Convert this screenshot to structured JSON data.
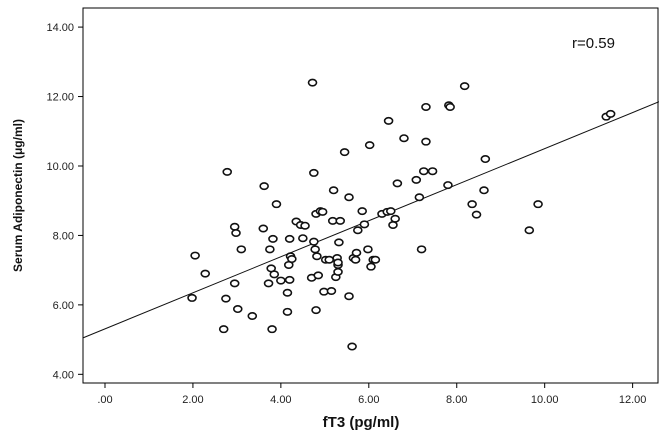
{
  "chart_data": {
    "type": "scatter",
    "xlabel": "fT3 (pg/ml)",
    "ylabel": "Serum Adiponectin (μg/ml)",
    "annotation": "r=0.59",
    "xlim": [
      -0.5,
      12.6
    ],
    "ylim": [
      3.75,
      14.55
    ],
    "x_ticks": [
      0,
      2,
      4,
      6,
      8,
      10,
      12
    ],
    "x_tick_labels": [
      ".00",
      "2.00",
      "4.00",
      "6.00",
      "8.00",
      "10.00",
      "12.00"
    ],
    "y_ticks": [
      4,
      6,
      8,
      10,
      12,
      14
    ],
    "y_tick_labels": [
      "4.00",
      "6.00",
      "8.00",
      "10.00",
      "12.00",
      "14.00"
    ],
    "grid": false,
    "legend": "none",
    "fit_line": {
      "x": [
        -0.5,
        12.6
      ],
      "y": [
        5.05,
        11.85
      ]
    },
    "marker_color": "#111111",
    "line_color": "#111111",
    "points": [
      [
        1.98,
        6.2
      ],
      [
        2.05,
        7.42
      ],
      [
        2.28,
        6.9
      ],
      [
        2.7,
        5.3
      ],
      [
        2.75,
        6.18
      ],
      [
        2.78,
        9.83
      ],
      [
        2.95,
        6.62
      ],
      [
        2.95,
        8.25
      ],
      [
        2.98,
        8.07
      ],
      [
        3.02,
        5.88
      ],
      [
        3.1,
        7.6
      ],
      [
        3.35,
        5.68
      ],
      [
        3.6,
        8.2
      ],
      [
        3.62,
        9.42
      ],
      [
        3.72,
        6.62
      ],
      [
        3.75,
        7.6
      ],
      [
        3.78,
        7.05
      ],
      [
        3.8,
        5.3
      ],
      [
        3.82,
        7.9
      ],
      [
        3.85,
        6.88
      ],
      [
        3.9,
        8.9
      ],
      [
        4.0,
        6.7
      ],
      [
        4.15,
        5.8
      ],
      [
        4.15,
        6.35
      ],
      [
        4.18,
        7.15
      ],
      [
        4.2,
        6.72
      ],
      [
        4.2,
        7.9
      ],
      [
        4.22,
        7.4
      ],
      [
        4.25,
        7.32
      ],
      [
        4.35,
        8.4
      ],
      [
        4.45,
        8.3
      ],
      [
        4.5,
        7.92
      ],
      [
        4.55,
        8.28
      ],
      [
        4.7,
        6.78
      ],
      [
        4.72,
        12.4
      ],
      [
        4.75,
        9.8
      ],
      [
        4.75,
        7.82
      ],
      [
        4.78,
        7.6
      ],
      [
        4.8,
        8.62
      ],
      [
        4.8,
        5.85
      ],
      [
        4.82,
        7.4
      ],
      [
        4.85,
        6.85
      ],
      [
        4.9,
        8.7
      ],
      [
        4.95,
        8.68
      ],
      [
        4.98,
        6.38
      ],
      [
        5.02,
        7.3
      ],
      [
        5.1,
        7.3
      ],
      [
        5.15,
        6.4
      ],
      [
        5.18,
        8.42
      ],
      [
        5.2,
        9.3
      ],
      [
        5.25,
        6.8
      ],
      [
        5.28,
        7.35
      ],
      [
        5.3,
        6.95
      ],
      [
        5.3,
        7.15
      ],
      [
        5.3,
        7.22
      ],
      [
        5.32,
        7.8
      ],
      [
        5.35,
        8.42
      ],
      [
        5.45,
        10.4
      ],
      [
        5.55,
        9.1
      ],
      [
        5.55,
        6.25
      ],
      [
        5.62,
        4.8
      ],
      [
        5.65,
        7.35
      ],
      [
        5.7,
        7.3
      ],
      [
        5.72,
        7.5
      ],
      [
        5.75,
        8.15
      ],
      [
        5.85,
        8.7
      ],
      [
        5.9,
        8.32
      ],
      [
        5.98,
        7.6
      ],
      [
        6.02,
        10.6
      ],
      [
        6.05,
        7.1
      ],
      [
        6.1,
        7.3
      ],
      [
        6.15,
        7.3
      ],
      [
        6.3,
        8.62
      ],
      [
        6.42,
        8.68
      ],
      [
        6.45,
        11.3
      ],
      [
        6.5,
        8.7
      ],
      [
        6.55,
        8.3
      ],
      [
        6.6,
        8.48
      ],
      [
        6.65,
        9.5
      ],
      [
        6.8,
        10.8
      ],
      [
        7.08,
        9.6
      ],
      [
        7.15,
        9.1
      ],
      [
        7.2,
        7.6
      ],
      [
        7.25,
        9.85
      ],
      [
        7.3,
        11.7
      ],
      [
        7.3,
        10.7
      ],
      [
        7.45,
        9.85
      ],
      [
        7.8,
        9.45
      ],
      [
        7.82,
        11.75
      ],
      [
        7.85,
        11.7
      ],
      [
        8.18,
        12.3
      ],
      [
        8.35,
        8.9
      ],
      [
        8.45,
        8.6
      ],
      [
        8.62,
        9.3
      ],
      [
        8.65,
        10.2
      ],
      [
        9.65,
        8.15
      ],
      [
        9.85,
        8.9
      ],
      [
        11.4,
        11.42
      ],
      [
        11.5,
        11.5
      ]
    ]
  }
}
